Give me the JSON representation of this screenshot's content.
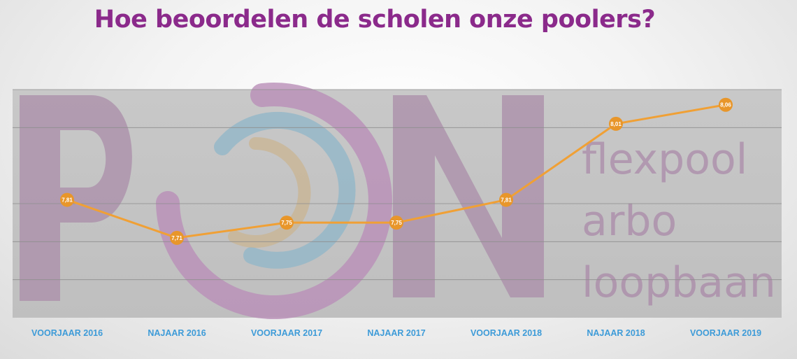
{
  "title": "Hoe beoordelen de scholen onze poolers?",
  "watermark": {
    "letters": [
      "P",
      "O",
      "N"
    ],
    "lines": [
      "flexpool",
      "arbo",
      "loopbaan"
    ]
  },
  "colors": {
    "title": "#8b2a8b",
    "line": "#f0a035",
    "marker": "#e8962a",
    "tick_label": "#3d9bd8",
    "plot_bg": "#c4c4c4",
    "watermark": "#a98aa8"
  },
  "chart_data": {
    "type": "line",
    "title": "Hoe beoordelen de scholen onze poolers?",
    "categories": [
      "VOORJAAR 2016",
      "NAJAAR 2016",
      "VOORJAAR 2017",
      "NAJAAR 2017",
      "VOORJAAR 2018",
      "NAJAAR 2018",
      "VOORJAAR 2019"
    ],
    "values": [
      7.81,
      7.71,
      7.75,
      7.75,
      7.81,
      8.01,
      8.06
    ],
    "value_labels": [
      "7,81",
      "7,71",
      "7,75",
      "7,75",
      "7,81",
      "8,01",
      "8,06"
    ],
    "ylim": [
      7.5,
      8.1
    ],
    "gridlines": [
      7.6,
      7.7,
      7.8,
      8.0,
      8.1
    ],
    "grid": true,
    "legend": "none",
    "xlabel": "",
    "ylabel": ""
  }
}
